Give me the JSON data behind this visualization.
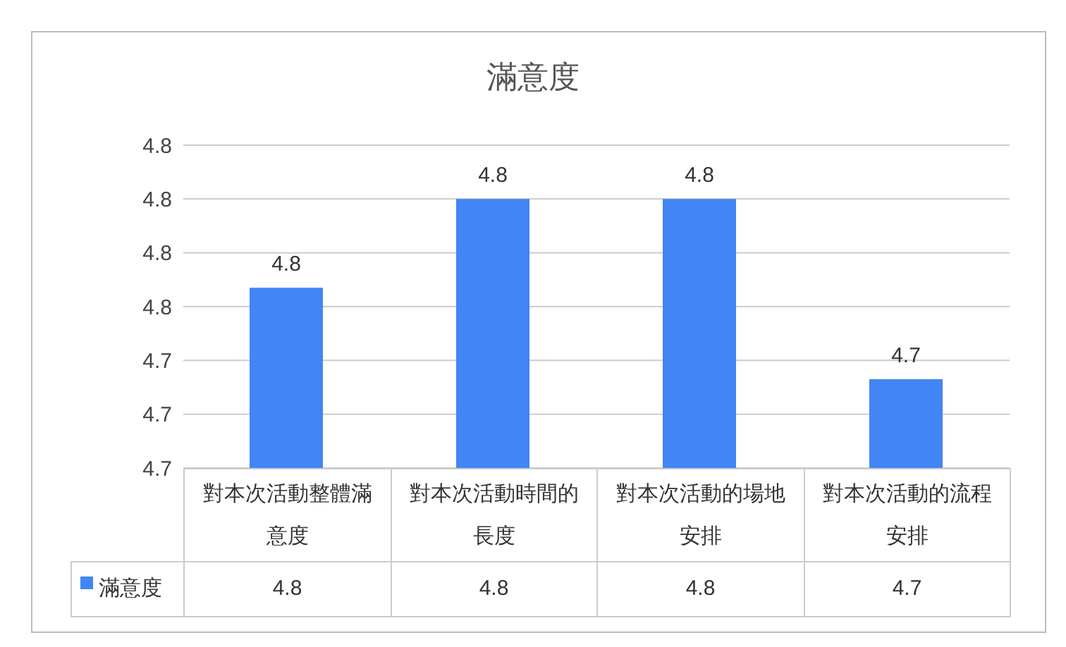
{
  "chart_data": {
    "type": "bar",
    "title": "滿意度",
    "categories": [
      "對本次活動整體滿意度",
      "對本次活動時間的長度",
      "對本次活動的場地安排",
      "對本次活動的流程安排"
    ],
    "series": [
      {
        "name": "滿意度",
        "color": "#4285f4",
        "values": [
          4.767,
          4.8,
          4.8,
          4.733
        ],
        "value_labels": [
          "4.8",
          "4.8",
          "4.8",
          "4.7"
        ]
      }
    ],
    "ylim": [
      4.7,
      4.82
    ],
    "yticks": [
      {
        "value": 4.7,
        "label": "4.7"
      },
      {
        "value": 4.72,
        "label": "4.7"
      },
      {
        "value": 4.74,
        "label": "4.7"
      },
      {
        "value": 4.76,
        "label": "4.8"
      },
      {
        "value": 4.78,
        "label": "4.8"
      },
      {
        "value": 4.8,
        "label": "4.8"
      },
      {
        "value": 4.82,
        "label": "4.8"
      }
    ],
    "grid": "y",
    "legend": "bottom"
  }
}
